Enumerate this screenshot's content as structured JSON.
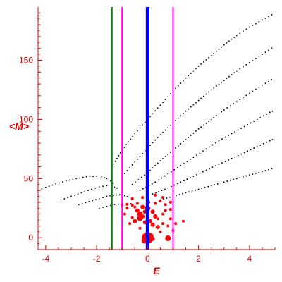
{
  "chart_data": {
    "type": "scatter",
    "title": "",
    "xlabel": "E",
    "ylabel": "<M>",
    "xlim": [
      -4.3,
      5.0
    ],
    "ylim": [
      -10,
      195
    ],
    "xticks": [
      -4,
      -2,
      0,
      2,
      4
    ],
    "yticks": [
      0,
      50,
      100,
      150
    ],
    "grid": false,
    "colors": {
      "axes": "#e00000",
      "points": "#000000",
      "highlight": "#ff0000",
      "line_green": "#008000",
      "line_magenta": "#ff00ff",
      "line_blue": "#0000ff"
    },
    "vertical_lines": [
      {
        "x": -1.4,
        "color": "#008000",
        "width": 2
      },
      {
        "x": -1.0,
        "color": "#ff00ff",
        "width": 2
      },
      {
        "x": 0.0,
        "color": "#0000ff",
        "width": 5
      },
      {
        "x": 1.0,
        "color": "#ff00ff",
        "width": 2
      }
    ],
    "series": [
      {
        "values": [
          [
            -4.3,
            40
          ],
          [
            -4.0,
            42.5
          ],
          [
            -3.6,
            45.5
          ],
          [
            -3.2,
            48
          ],
          [
            -2.8,
            50
          ],
          [
            -2.4,
            51.5
          ],
          [
            -2.0,
            52
          ],
          [
            -1.8,
            51.5
          ],
          [
            -1.6,
            50
          ],
          [
            -1.45,
            48
          ],
          [
            -1.3,
            44
          ]
        ]
      },
      {
        "values": [
          [
            -3.4,
            32
          ],
          [
            -3.0,
            35
          ],
          [
            -2.6,
            38
          ],
          [
            -2.2,
            41
          ],
          [
            -1.9,
            43
          ],
          [
            -1.6,
            44
          ],
          [
            -1.4,
            43.5
          ],
          [
            -1.2,
            42
          ],
          [
            -1.05,
            40
          ]
        ]
      },
      {
        "values": [
          [
            -2.7,
            28
          ],
          [
            -2.3,
            30.5
          ],
          [
            -1.9,
            33
          ],
          [
            -1.6,
            35
          ],
          [
            -1.35,
            36
          ],
          [
            -1.1,
            36.3
          ],
          [
            -0.9,
            35.5
          ],
          [
            -0.7,
            34
          ]
        ]
      },
      {
        "values": [
          [
            -1.9,
            25
          ],
          [
            -1.6,
            26.5
          ],
          [
            -1.3,
            28
          ],
          [
            -1.0,
            28.8
          ],
          [
            -0.8,
            29
          ],
          [
            -0.5,
            28.5
          ],
          [
            -0.3,
            27.5
          ]
        ]
      },
      {
        "values": [
          [
            -1.4,
            60
          ],
          [
            -1.0,
            74
          ],
          [
            -0.5,
            88
          ],
          [
            0.0,
            100
          ],
          [
            0.5,
            112
          ],
          [
            1.0,
            124
          ],
          [
            1.5,
            135
          ],
          [
            2.0,
            145
          ],
          [
            2.5,
            154
          ],
          [
            3.0,
            163
          ],
          [
            3.5,
            171
          ],
          [
            4.0,
            178
          ],
          [
            4.5,
            184
          ],
          [
            5.0,
            190
          ]
        ]
      },
      {
        "values": [
          [
            -1.0,
            52
          ],
          [
            -0.5,
            64
          ],
          [
            0.0,
            76
          ],
          [
            0.5,
            87
          ],
          [
            1.0,
            97
          ],
          [
            1.5,
            107
          ],
          [
            2.0,
            116
          ],
          [
            2.5,
            125
          ],
          [
            3.0,
            133
          ],
          [
            3.5,
            141
          ],
          [
            4.0,
            148
          ],
          [
            4.5,
            155
          ],
          [
            5.0,
            162
          ]
        ]
      },
      {
        "values": [
          [
            -0.6,
            45
          ],
          [
            0.0,
            55
          ],
          [
            0.5,
            65
          ],
          [
            1.0,
            74
          ],
          [
            1.5,
            83
          ],
          [
            2.0,
            92
          ],
          [
            2.5,
            100
          ],
          [
            3.0,
            108
          ],
          [
            3.5,
            115
          ],
          [
            4.0,
            122
          ],
          [
            4.5,
            129
          ],
          [
            5.0,
            135
          ]
        ]
      },
      {
        "values": [
          [
            -0.3,
            40
          ],
          [
            0.3,
            47
          ],
          [
            0.8,
            54
          ],
          [
            1.3,
            61
          ],
          [
            1.8,
            68
          ],
          [
            2.3,
            75
          ],
          [
            2.8,
            82
          ],
          [
            3.3,
            88
          ],
          [
            3.8,
            94
          ],
          [
            4.3,
            100
          ],
          [
            4.8,
            106
          ],
          [
            5.0,
            108
          ]
        ]
      },
      {
        "values": [
          [
            0.2,
            37
          ],
          [
            0.8,
            42
          ],
          [
            1.3,
            47
          ],
          [
            1.8,
            52
          ],
          [
            2.3,
            57
          ],
          [
            2.8,
            62
          ],
          [
            3.3,
            67
          ],
          [
            3.8,
            72
          ],
          [
            4.3,
            77
          ],
          [
            4.8,
            82
          ],
          [
            5.0,
            84
          ]
        ]
      },
      {
        "values": [
          [
            0.5,
            32
          ],
          [
            1.0,
            35
          ],
          [
            1.5,
            38
          ],
          [
            2.0,
            41
          ],
          [
            2.5,
            44
          ],
          [
            3.0,
            47
          ],
          [
            3.5,
            50
          ],
          [
            4.0,
            53
          ],
          [
            4.5,
            56
          ],
          [
            5.0,
            59
          ]
        ]
      }
    ],
    "highlight_points": [
      [
        -1.0,
        27.5
      ],
      [
        -0.8,
        28.2
      ],
      [
        -0.6,
        27.5
      ],
      [
        -0.5,
        26
      ],
      [
        -0.4,
        23
      ],
      [
        -0.3,
        20
      ],
      [
        -0.2,
        18
      ],
      [
        -0.1,
        22
      ],
      [
        0.0,
        25
      ],
      [
        0.05,
        30
      ],
      [
        -0.3,
        16.5
      ],
      [
        -0.5,
        14
      ],
      [
        -0.7,
        12
      ],
      [
        -0.1,
        13
      ],
      [
        0.2,
        11
      ],
      [
        0.4,
        9
      ],
      [
        0.6,
        12
      ],
      [
        0.8,
        10
      ],
      [
        0.4,
        16
      ],
      [
        0.6,
        20
      ],
      [
        0.3,
        29
      ],
      [
        0.5,
        31
      ],
      [
        0.7,
        28
      ],
      [
        0.9,
        30
      ],
      [
        0.6,
        34
      ],
      [
        0.3,
        36
      ],
      [
        -0.2,
        34
      ],
      [
        -0.6,
        33
      ],
      [
        -0.8,
        25
      ],
      [
        -0.9,
        20
      ],
      [
        0.0,
        0
      ],
      [
        0.05,
        -1
      ],
      [
        0.1,
        1
      ],
      [
        -0.1,
        -2
      ],
      [
        0.2,
        -1
      ],
      [
        0.8,
        -0.5
      ],
      [
        1.0,
        6
      ],
      [
        1.1,
        12
      ],
      [
        1.4,
        14
      ],
      [
        0.9,
        16
      ],
      [
        -0.2,
        26
      ],
      [
        0.2,
        22
      ],
      [
        0.3,
        18
      ],
      [
        -0.4,
        29
      ],
      [
        0.7,
        23
      ],
      [
        0.1,
        14
      ],
      [
        -0.6,
        17
      ],
      [
        0.5,
        5
      ],
      [
        -0.3,
        8
      ],
      [
        0.9,
        24
      ]
    ],
    "highlight_sizes": [
      2,
      2,
      2,
      2,
      3,
      4,
      3,
      3,
      4,
      2,
      4,
      3,
      2,
      3,
      3,
      3,
      2,
      2,
      2,
      2,
      2,
      2,
      2,
      2,
      2,
      2,
      2,
      2,
      2,
      2,
      8,
      6,
      5,
      5,
      3,
      4,
      2,
      2,
      2,
      2,
      3,
      3,
      3,
      2,
      2,
      3,
      2,
      2,
      2,
      2
    ]
  }
}
